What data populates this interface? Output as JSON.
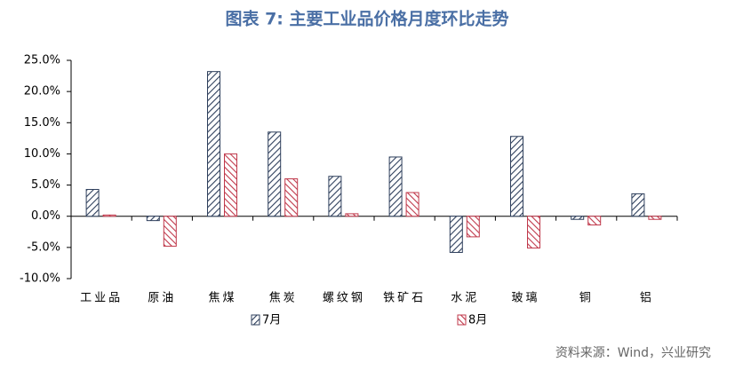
{
  "chart_data": {
    "type": "bar",
    "title": "图表 7:  主要工业品价格月度环比走势",
    "source": "资料来源：Wind，兴业研究",
    "categories": [
      "工业品",
      "原油",
      "焦煤",
      "焦炭",
      "螺纹钢",
      "铁矿石",
      "水泥",
      "玻璃",
      "铜",
      "铝"
    ],
    "series": [
      {
        "name": "7月",
        "color": "#2e3f5c",
        "values": [
          4.3,
          -0.7,
          23.2,
          13.5,
          6.4,
          9.5,
          -5.8,
          12.8,
          -0.5,
          3.6
        ]
      },
      {
        "name": "8月",
        "color": "#c0394b",
        "values": [
          0.2,
          -4.8,
          10.0,
          6.0,
          0.4,
          3.8,
          -3.3,
          -5.1,
          -1.4,
          -0.5
        ]
      }
    ],
    "ylim": [
      -10,
      25
    ],
    "yticks": [
      {
        "value": -10,
        "label": "-10.0%"
      },
      {
        "value": -5,
        "label": "-5.0%"
      },
      {
        "value": 0,
        "label": "0.0%"
      },
      {
        "value": 5,
        "label": "5.0%"
      },
      {
        "value": 10,
        "label": "10.0%"
      },
      {
        "value": 15,
        "label": "15.0%"
      },
      {
        "value": 20,
        "label": "20.0%"
      },
      {
        "value": 25,
        "label": "25.0%"
      }
    ],
    "grid": false,
    "legend": "bottom"
  }
}
